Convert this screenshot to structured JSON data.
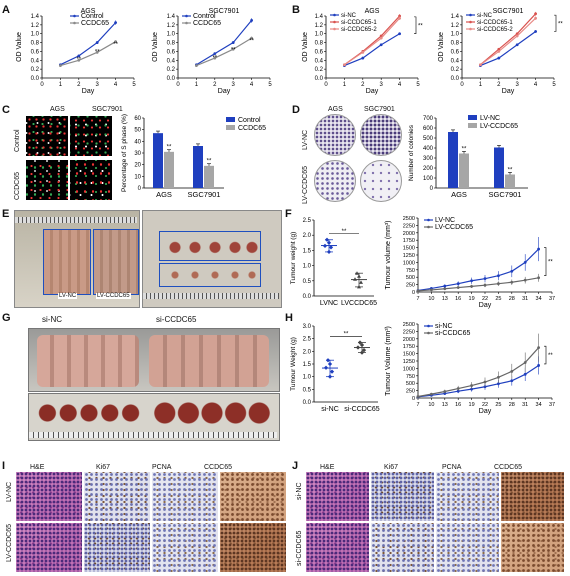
{
  "panels": {
    "A": {
      "label": "A",
      "charts": [
        {
          "title": "AGS",
          "xlabel": "Day",
          "ylabel": "OD Value",
          "yticks": [
            "0.0",
            "0.2",
            "0.4",
            "0.6",
            "0.8",
            "1.0",
            "1.2",
            "1.4"
          ],
          "xticks": [
            "0",
            "1",
            "2",
            "3",
            "4",
            "5"
          ],
          "legend": [
            "Control",
            "CCDC65"
          ],
          "sig": "**"
        },
        {
          "title": "SGC7901",
          "xlabel": "Day",
          "ylabel": "OD Value",
          "yticks": [
            "0.0",
            "0.2",
            "0.4",
            "0.6",
            "0.8",
            "1.0",
            "1.2",
            "1.4"
          ],
          "xticks": [
            "0",
            "1",
            "2",
            "3",
            "4",
            "5"
          ],
          "legend": [
            "Control",
            "CCDC65"
          ],
          "sig": "**"
        }
      ]
    },
    "B": {
      "label": "B",
      "charts": [
        {
          "title": "AGS",
          "xlabel": "Day",
          "ylabel": "OD Value",
          "yticks": [
            "0.0",
            "0.2",
            "0.4",
            "0.6",
            "0.8",
            "1.0",
            "1.2",
            "1.4"
          ],
          "xticks": [
            "0",
            "1",
            "2",
            "3",
            "4",
            "5"
          ],
          "legend": [
            "si-NC",
            "si-CCDC65-1",
            "si-CCDC65-2"
          ],
          "sig": "**"
        },
        {
          "title": "SGC7901",
          "xlabel": "Day",
          "ylabel": "OD Value",
          "yticks": [
            "0.0",
            "0.2",
            "0.4",
            "0.6",
            "0.8",
            "1.0",
            "1.2",
            "1.4"
          ],
          "xticks": [
            "0",
            "1",
            "2",
            "3",
            "4",
            "5"
          ],
          "legend": [
            "si-NC",
            "si-CCDC65-1",
            "si-CCDC65-2"
          ],
          "sig": "**"
        }
      ]
    },
    "C": {
      "label": "C",
      "cols": [
        "AGS",
        "SGC7901"
      ],
      "rows": [
        "Control",
        "CCDC65"
      ],
      "ylabel": "Percentage of S phase (%)",
      "yticks": [
        "0",
        "10",
        "20",
        "30",
        "40",
        "50",
        "60"
      ],
      "categories": [
        "AGS",
        "SGC7901"
      ],
      "legend": [
        "Control",
        "CCDC65"
      ],
      "sig": "**"
    },
    "D": {
      "label": "D",
      "cols": [
        "AGS",
        "SGC7901"
      ],
      "rows": [
        "LV-NC",
        "LV-CCDC65"
      ],
      "ylabel": "Number of colonies",
      "yticks": [
        "0",
        "100",
        "200",
        "300",
        "400",
        "500",
        "600",
        "700"
      ],
      "categories": [
        "AGS",
        "SGC7901"
      ],
      "legend": [
        "LV-NC",
        "LV-CCDC65"
      ],
      "sig": "**"
    },
    "E": {
      "label": "E",
      "tags": [
        "LV-NC",
        "LV-CCDC65"
      ]
    },
    "F": {
      "label": "F",
      "dot": {
        "ylabel": "Tumour weight (g)",
        "yticks": [
          "0.0",
          "0.5",
          "1.0",
          "1.5",
          "2.0",
          "2.5"
        ],
        "categories": [
          "LVNC",
          "LVCCDC65"
        ],
        "sig": "**"
      },
      "growth": {
        "ylabel": "Tumour volume (mm³)",
        "yticks": [
          "0",
          "250",
          "500",
          "750",
          "1000",
          "1250",
          "1500",
          "1750",
          "2000",
          "2250",
          "2500"
        ],
        "xticks": [
          "7",
          "10",
          "13",
          "16",
          "19",
          "22",
          "25",
          "28",
          "31",
          "34",
          "37"
        ],
        "xlabel": "Day",
        "legend": [
          "LV-NC",
          "LV-CCDC65"
        ],
        "sig": "**"
      }
    },
    "G": {
      "label": "G",
      "tags": [
        "si-NC",
        "si-CCDC65"
      ]
    },
    "H": {
      "label": "H",
      "dot": {
        "ylabel": "Tumour Weight (g)",
        "yticks": [
          "0.0",
          "0.5",
          "1.0",
          "1.5",
          "2.0",
          "2.5",
          "3.0"
        ],
        "categories": [
          "si-NC",
          "si-CCDC65"
        ],
        "sig": "**"
      },
      "growth": {
        "ylabel": "Tumour Volume (mm³)",
        "yticks": [
          "0",
          "250",
          "500",
          "750",
          "1000",
          "1250",
          "1500",
          "1750",
          "2000",
          "2250",
          "2500"
        ],
        "xticks": [
          "7",
          "10",
          "13",
          "16",
          "19",
          "22",
          "25",
          "28",
          "31",
          "34",
          "37"
        ],
        "xlabel": "Day",
        "legend": [
          "si-NC",
          "si-CCDC65"
        ],
        "sig": "**"
      }
    },
    "I": {
      "label": "I",
      "cols": [
        "H&E",
        "Ki67",
        "PCNA",
        "CCDC65"
      ],
      "rows": [
        "LV-NC",
        "LV-CCDC65"
      ]
    },
    "J": {
      "label": "J",
      "cols": [
        "H&E",
        "Ki67",
        "PCNA",
        "CCDC65"
      ],
      "rows": [
        "si-NC",
        "si-CCDC65"
      ]
    }
  },
  "chart_data": [
    {
      "type": "line",
      "panel": "A",
      "title": "AGS",
      "xlabel": "Day",
      "ylabel": "OD Value",
      "ylim": [
        0,
        1.4
      ],
      "x": [
        1,
        2,
        3,
        4
      ],
      "series": [
        {
          "name": "Control",
          "values": [
            0.3,
            0.5,
            0.8,
            1.25
          ]
        },
        {
          "name": "CCDC65",
          "values": [
            0.28,
            0.4,
            0.58,
            0.82
          ]
        }
      ]
    },
    {
      "type": "line",
      "panel": "A",
      "title": "SGC7901",
      "xlabel": "Day",
      "ylabel": "OD Value",
      "ylim": [
        0,
        1.4
      ],
      "x": [
        1,
        2,
        3,
        4
      ],
      "series": [
        {
          "name": "Control",
          "values": [
            0.3,
            0.55,
            0.8,
            1.3
          ]
        },
        {
          "name": "CCDC65",
          "values": [
            0.28,
            0.45,
            0.65,
            0.9
          ]
        }
      ]
    },
    {
      "type": "line",
      "panel": "B",
      "title": "AGS",
      "xlabel": "Day",
      "ylabel": "OD Value",
      "ylim": [
        0,
        1.4
      ],
      "x": [
        1,
        2,
        3,
        4
      ],
      "series": [
        {
          "name": "si-NC",
          "values": [
            0.28,
            0.45,
            0.75,
            1.0
          ]
        },
        {
          "name": "si-CCDC65-1",
          "values": [
            0.3,
            0.6,
            0.95,
            1.4
          ]
        },
        {
          "name": "si-CCDC65-2",
          "values": [
            0.3,
            0.58,
            0.9,
            1.35
          ]
        }
      ]
    },
    {
      "type": "line",
      "panel": "B",
      "title": "SGC7901",
      "xlabel": "Day",
      "ylabel": "OD Value",
      "ylim": [
        0,
        1.4
      ],
      "x": [
        1,
        2,
        3,
        4
      ],
      "series": [
        {
          "name": "si-NC",
          "values": [
            0.28,
            0.45,
            0.75,
            1.05
          ]
        },
        {
          "name": "si-CCDC65-1",
          "values": [
            0.3,
            0.65,
            1.0,
            1.45
          ]
        },
        {
          "name": "si-CCDC65-2",
          "values": [
            0.3,
            0.6,
            0.95,
            1.35
          ]
        }
      ]
    },
    {
      "type": "bar",
      "panel": "C",
      "ylabel": "Percentage of S phase (%)",
      "ylim": [
        0,
        60
      ],
      "categories": [
        "AGS",
        "SGC7901"
      ],
      "series": [
        {
          "name": "Control",
          "values": [
            47,
            36
          ]
        },
        {
          "name": "CCDC65",
          "values": [
            31,
            19
          ]
        }
      ]
    },
    {
      "type": "bar",
      "panel": "D",
      "ylabel": "Number of colonies",
      "ylim": [
        0,
        700
      ],
      "categories": [
        "AGS",
        "SGC7901"
      ],
      "series": [
        {
          "name": "LV-NC",
          "values": [
            560,
            405
          ]
        },
        {
          "name": "LV-CCDC65",
          "values": [
            345,
            135
          ]
        }
      ]
    },
    {
      "type": "scatter",
      "panel": "F",
      "ylabel": "Tumour weight (g)",
      "ylim": [
        0,
        2.5
      ],
      "categories": [
        "LVNC",
        "LVCCDC65"
      ],
      "series": [
        {
          "name": "LVNC",
          "values": [
            1.45,
            1.6,
            1.65,
            1.75,
            1.85
          ]
        },
        {
          "name": "LVCCDC65",
          "values": [
            0.3,
            0.45,
            0.55,
            0.65,
            0.75
          ]
        }
      ]
    },
    {
      "type": "line",
      "panel": "F",
      "xlabel": "Day",
      "ylabel": "Tumour volume (mm³)",
      "ylim": [
        0,
        2500
      ],
      "x": [
        7,
        10,
        13,
        16,
        19,
        22,
        25,
        28,
        31,
        34
      ],
      "series": [
        {
          "name": "LV-NC",
          "values": [
            50,
            120,
            200,
            280,
            380,
            450,
            550,
            700,
            1000,
            1450
          ]
        },
        {
          "name": "LV-CCDC65",
          "values": [
            40,
            70,
            110,
            150,
            190,
            230,
            280,
            330,
            400,
            480
          ]
        }
      ]
    },
    {
      "type": "scatter",
      "panel": "H",
      "ylabel": "Tumour Weight (g)",
      "ylim": [
        0,
        3.0
      ],
      "categories": [
        "si-NC",
        "si-CCDC65"
      ],
      "series": [
        {
          "name": "si-NC",
          "values": [
            1.0,
            1.2,
            1.35,
            1.5,
            1.65
          ]
        },
        {
          "name": "si-CCDC65",
          "values": [
            1.95,
            2.05,
            2.15,
            2.25,
            2.35
          ]
        }
      ]
    },
    {
      "type": "line",
      "panel": "H",
      "xlabel": "Day",
      "ylabel": "Tumour Volume (mm³)",
      "ylim": [
        0,
        2500
      ],
      "x": [
        7,
        10,
        13,
        16,
        19,
        22,
        25,
        28,
        31,
        34
      ],
      "series": [
        {
          "name": "si-NC",
          "values": [
            40,
            90,
            150,
            230,
            300,
            380,
            480,
            580,
            800,
            1100
          ]
        },
        {
          "name": "si-CCDC65",
          "values": [
            50,
            130,
            220,
            320,
            420,
            540,
            700,
            900,
            1200,
            1700
          ]
        }
      ]
    }
  ]
}
